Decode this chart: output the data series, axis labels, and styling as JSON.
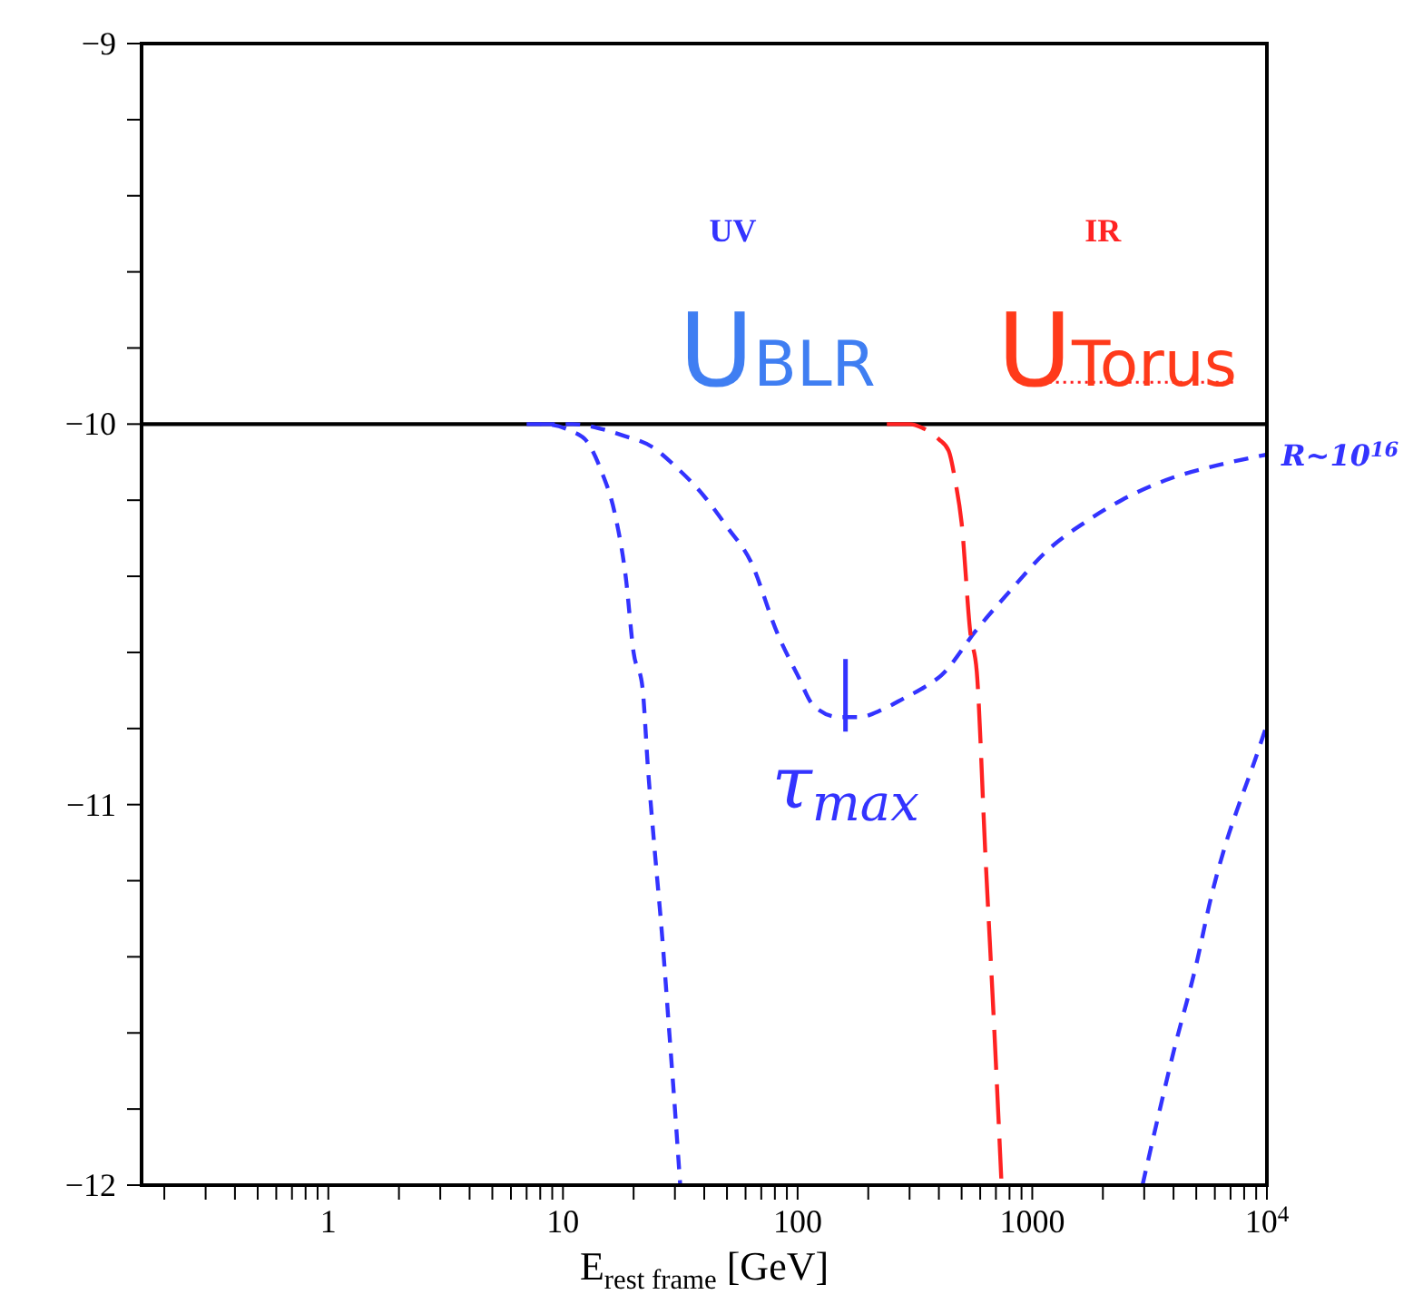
{
  "chart_data": {
    "type": "line",
    "xlabel": "E$_{rest frame}$ [GeV]",
    "log": "x",
    "line_style": "dashed",
    "marker": "none",
    "xlim": [
      0.16,
      10000
    ],
    "ylim": [
      -12,
      -9
    ],
    "xticks": [
      {
        "value": 0.2,
        "label": null
      },
      {
        "value": 0.3,
        "label": null
      },
      {
        "value": 0.4,
        "label": null
      },
      {
        "value": 0.5,
        "label": null
      },
      {
        "value": 0.6,
        "label": null
      },
      {
        "value": 0.7,
        "label": null
      },
      {
        "value": 0.8,
        "label": null
      },
      {
        "value": 0.9,
        "label": null
      },
      1,
      {
        "value": 2,
        "label": null
      },
      {
        "value": 3,
        "label": null
      },
      {
        "value": 4,
        "label": null
      },
      {
        "value": 5,
        "label": null
      },
      {
        "value": 6,
        "label": null
      },
      {
        "value": 7,
        "label": null
      },
      {
        "value": 8,
        "label": null
      },
      {
        "value": 9,
        "label": null
      },
      10,
      {
        "value": 20,
        "label": null
      },
      {
        "value": 30,
        "label": null
      },
      {
        "value": 40,
        "label": null
      },
      {
        "value": 50,
        "label": null
      },
      {
        "value": 60,
        "label": null
      },
      {
        "value": 70,
        "label": null
      },
      {
        "value": 80,
        "label": null
      },
      {
        "value": 90,
        "label": null
      },
      100,
      {
        "value": 200,
        "label": null
      },
      {
        "value": 300,
        "label": null
      },
      {
        "value": 400,
        "label": null
      },
      {
        "value": 500,
        "label": null
      },
      {
        "value": 600,
        "label": null
      },
      {
        "value": 700,
        "label": null
      },
      {
        "value": 800,
        "label": null
      },
      {
        "value": 900,
        "label": null
      },
      1000,
      {
        "value": 2000,
        "label": null
      },
      {
        "value": 3000,
        "label": null
      },
      {
        "value": 4000,
        "label": null
      },
      {
        "value": 5000,
        "label": null
      },
      {
        "value": 6000,
        "label": null
      },
      {
        "value": 7000,
        "label": null
      },
      {
        "value": 8000,
        "label": null
      },
      {
        "value": 9000,
        "label": null
      },
      {
        "value": 10000,
        "label": "10$^{4}$"
      }
    ],
    "yticks": [
      -12,
      {
        "value": -11.8,
        "label": null
      },
      {
        "value": -11.6,
        "label": null
      },
      {
        "value": -11.4,
        "label": null
      },
      {
        "value": -11.2,
        "label": null
      },
      -11,
      {
        "value": -10.8,
        "label": null
      },
      {
        "value": -10.6,
        "label": null
      },
      {
        "value": -10.4,
        "label": null
      },
      {
        "value": -10.2,
        "label": null
      },
      -10,
      {
        "value": -9.8,
        "label": null
      },
      {
        "value": -9.6,
        "label": null
      },
      {
        "value": -9.4,
        "label": null
      },
      {
        "value": -9.2,
        "label": null
      },
      -9
    ],
    "series": [
      {
        "color": "#000000",
        "line_style": "solid",
        "x": [
          0.16,
          10000
        ],
        "values": [
          -10,
          -10
        ]
      },
      {
        "color": "#3333ff",
        "x": [
          7,
          8.2,
          11,
          12.8,
          14.5,
          16.7,
          18.5,
          20,
          21.8,
          23,
          24.6,
          26.5,
          28.4,
          30,
          31.6
        ],
        "values": [
          -10,
          -10,
          -10.02,
          -10.05,
          -10.12,
          -10.24,
          -10.4,
          -10.6,
          -10.69,
          -10.9,
          -11.12,
          -11.35,
          -11.6,
          -11.8,
          -12
        ]
      },
      {
        "color": "#3333ff",
        "x": [
          8,
          11,
          14,
          18,
          24,
          30,
          40,
          50,
          63,
          82,
          100,
          117,
          150,
          183,
          230,
          285,
          350,
          410,
          580,
          800,
          1170,
          1660,
          2400,
          4000,
          6000,
          10000
        ],
        "values": [
          -10,
          -10,
          -10.01,
          -10.03,
          -10.06,
          -10.11,
          -10.19,
          -10.27,
          -10.36,
          -10.55,
          -10.66,
          -10.74,
          -10.77,
          -10.77,
          -10.75,
          -10.72,
          -10.69,
          -10.66,
          -10.54,
          -10.44,
          -10.33,
          -10.26,
          -10.2,
          -10.14,
          -10.11,
          -10.08
        ]
      },
      {
        "color": "#ff2222",
        "line_style": "dashed",
        "x": [
          240,
          300,
          340,
          400,
          440,
          470,
          500,
          545,
          580,
          630,
          690,
          740
        ],
        "values": [
          -10,
          -10,
          -10.01,
          -10.04,
          -10.07,
          -10.15,
          -10.26,
          -10.55,
          -10.65,
          -11.12,
          -11.6,
          -12
        ]
      },
      {
        "color": "#3333ff",
        "x": [
          2950,
          3500,
          4000,
          5000,
          5800,
          6700,
          7600,
          8700,
          10000
        ],
        "values": [
          -12,
          -11.8,
          -11.65,
          -11.42,
          -11.24,
          -11.1,
          -11,
          -10.9,
          -10.79
        ]
      }
    ],
    "annotations": [
      "UV",
      "IR",
      "U$_{BLR}$",
      "U$_{Torus}$",
      {
        "text": "τ$_{max}$",
        "x": 160,
        "y": -10.77
      },
      {
        "text": "R~10$^{16}$",
        "x": 10000,
        "y": -10.08
      }
    ]
  }
}
